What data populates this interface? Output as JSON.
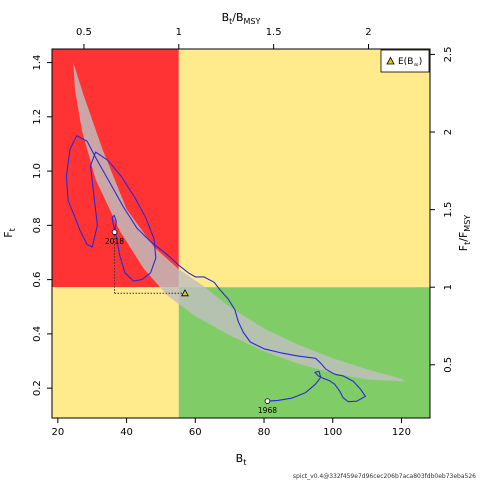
{
  "chart_data": {
    "type": "line",
    "xlabel": "B",
    "xlabel_sub": "t",
    "ylabel": "F",
    "ylabel_sub": "t",
    "top_axis_label": {
      "main": "B",
      "sub1": "t",
      "sep": "/B",
      "sub2": "MSY"
    },
    "right_axis_label": {
      "main": "F",
      "sub1": "t",
      "sep": "/F",
      "sub2": "MSY"
    },
    "xlim": [
      18.3,
      128.3
    ],
    "ylim": [
      0.09,
      1.45
    ],
    "xticks": [
      20,
      40,
      60,
      80,
      100,
      120
    ],
    "yticks": [
      0.2,
      0.4,
      0.6,
      0.8,
      1.0,
      1.2,
      1.4
    ],
    "top_ticks": [
      0.5,
      1,
      1.5,
      2
    ],
    "right_ticks": [
      0.5,
      1,
      1.5,
      2,
      2.5
    ],
    "bmsy": 55.2,
    "fmsy": 0.572,
    "zone_colors": {
      "red": "#ff3333",
      "yellow": "#ffea8c",
      "green": "#80cc66"
    },
    "trajectory_color": "#2a2ad4",
    "ellipse_color": "#bfbfbf",
    "trajectory": [
      [
        81.0,
        0.152
      ],
      [
        84.0,
        0.155
      ],
      [
        88.0,
        0.163
      ],
      [
        92.0,
        0.183
      ],
      [
        95.0,
        0.215
      ],
      [
        96.5,
        0.24
      ],
      [
        96.0,
        0.262
      ],
      [
        94.8,
        0.258
      ],
      [
        95.8,
        0.245
      ],
      [
        97.5,
        0.235
      ],
      [
        99.0,
        0.228
      ],
      [
        100.5,
        0.215
      ],
      [
        102.0,
        0.19
      ],
      [
        103.0,
        0.165
      ],
      [
        104.5,
        0.15
      ],
      [
        107.0,
        0.152
      ],
      [
        109.5,
        0.17
      ],
      [
        108.0,
        0.198
      ],
      [
        106.0,
        0.225
      ],
      [
        103.0,
        0.245
      ],
      [
        101.0,
        0.25
      ],
      [
        100.0,
        0.255
      ],
      [
        98.0,
        0.27
      ],
      [
        96.5,
        0.292
      ],
      [
        95.0,
        0.31
      ],
      [
        90.0,
        0.318
      ],
      [
        85.0,
        0.33
      ],
      [
        80.0,
        0.345
      ],
      [
        76.0,
        0.37
      ],
      [
        74.0,
        0.405
      ],
      [
        72.5,
        0.445
      ],
      [
        71.5,
        0.49
      ],
      [
        69.5,
        0.53
      ],
      [
        67.0,
        0.565
      ],
      [
        65.5,
        0.59
      ],
      [
        62.5,
        0.61
      ],
      [
        60.0,
        0.61
      ],
      [
        58.0,
        0.625
      ],
      [
        55.5,
        0.65
      ],
      [
        52.0,
        0.69
      ],
      [
        47.0,
        0.74
      ],
      [
        43.0,
        0.79
      ],
      [
        39.0,
        0.87
      ],
      [
        35.0,
        0.96
      ],
      [
        31.0,
        1.05
      ],
      [
        28.5,
        1.11
      ],
      [
        25.5,
        1.13
      ],
      [
        23.5,
        1.08
      ],
      [
        22.5,
        0.98
      ],
      [
        23.0,
        0.89
      ],
      [
        25.0,
        0.83
      ],
      [
        26.5,
        0.78
      ],
      [
        28.5,
        0.73
      ],
      [
        30.0,
        0.72
      ],
      [
        31.5,
        0.8
      ],
      [
        30.5,
        0.91
      ],
      [
        29.5,
        1.02
      ],
      [
        31.0,
        1.07
      ],
      [
        34.5,
        1.04
      ],
      [
        38.5,
        0.98
      ],
      [
        42.5,
        0.9
      ],
      [
        45.5,
        0.83
      ],
      [
        48.0,
        0.75
      ],
      [
        48.5,
        0.68
      ],
      [
        47.0,
        0.625
      ],
      [
        44.5,
        0.6
      ],
      [
        42.0,
        0.595
      ],
      [
        39.5,
        0.625
      ],
      [
        38.0,
        0.69
      ],
      [
        37.0,
        0.76
      ],
      [
        36.2,
        0.8
      ],
      [
        35.8,
        0.828
      ],
      [
        36.4,
        0.837
      ],
      [
        37.0,
        0.815
      ],
      [
        36.6,
        0.782
      ],
      [
        36.5,
        0.775
      ]
    ],
    "ellipse": {
      "upper": [
        [
          24.5,
          1.4
        ],
        [
          27.5,
          1.28
        ],
        [
          33.0,
          1.08
        ],
        [
          40.0,
          0.86
        ],
        [
          48.0,
          0.72
        ],
        [
          55.0,
          0.64
        ],
        [
          62.0,
          0.58
        ],
        [
          70.0,
          0.5
        ],
        [
          80.0,
          0.42
        ],
        [
          90.0,
          0.36
        ],
        [
          100.0,
          0.31
        ],
        [
          110.0,
          0.27
        ],
        [
          120.0,
          0.235
        ]
      ],
      "lower": [
        [
          121.0,
          0.225
        ],
        [
          110.0,
          0.232
        ],
        [
          100.0,
          0.255
        ],
        [
          90.0,
          0.29
        ],
        [
          80.0,
          0.335
        ],
        [
          70.0,
          0.395
        ],
        [
          60.0,
          0.465
        ],
        [
          52.0,
          0.54
        ],
        [
          45.0,
          0.64
        ],
        [
          38.0,
          0.78
        ],
        [
          31.0,
          0.97
        ],
        [
          27.0,
          1.15
        ],
        [
          25.0,
          1.3
        ],
        [
          24.5,
          1.4
        ]
      ]
    },
    "markers": [
      {
        "label": "2018",
        "x": 36.5,
        "y": 0.775
      },
      {
        "label": "1968",
        "x": 81.0,
        "y": 0.152
      }
    ],
    "expected_point": {
      "x": 57.0,
      "y": 0.55
    },
    "legend": {
      "label_main": "E(B",
      "label_sub": "∞",
      "label_end": ")",
      "placement": "top-right"
    },
    "footer_text": "spict_v0.4@332f459e7d96cec206b7aca803fdb0eb73eba526"
  }
}
